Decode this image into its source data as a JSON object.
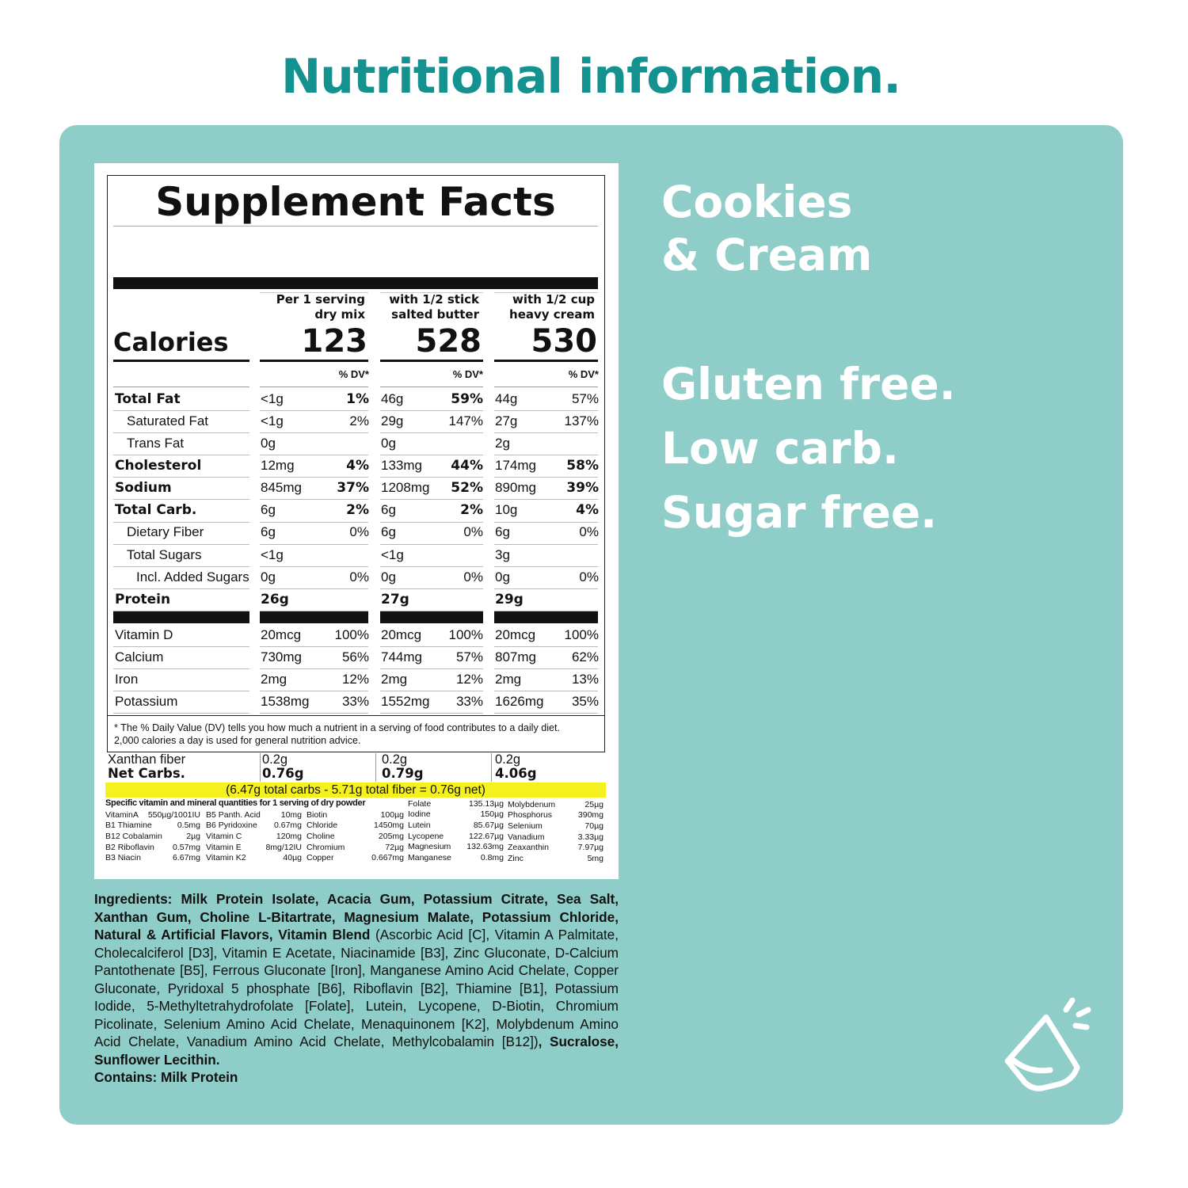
{
  "title": "Nutritional information.",
  "flavor": [
    "Cookies",
    "& Cream"
  ],
  "claims": [
    "Gluten free.",
    "Low carb.",
    "Sugar free."
  ],
  "facts": {
    "heading": "Supplement Facts",
    "calories_label": "Calories",
    "columns": [
      {
        "header": [
          "Per 1 serving",
          "dry mix"
        ],
        "calories": "123",
        "dv": "% DV*"
      },
      {
        "header": [
          "with 1/2 stick",
          "salted butter"
        ],
        "calories": "528",
        "dv": "% DV*"
      },
      {
        "header": [
          "with 1/2 cup",
          "heavy cream"
        ],
        "calories": "530",
        "dv": "% DV*"
      }
    ],
    "rows": [
      {
        "label": "Total Fat",
        "level": 0,
        "bold": true,
        "values": [
          [
            "<1g",
            "1%"
          ],
          [
            "46g",
            "59%"
          ],
          [
            "44g",
            "57%"
          ]
        ],
        "dv_bold": [
          true,
          true,
          false
        ]
      },
      {
        "label": "Saturated Fat",
        "level": 1,
        "bold": false,
        "values": [
          [
            "<1g",
            "2%"
          ],
          [
            "29g",
            "147%"
          ],
          [
            "27g",
            "137%"
          ]
        ],
        "dv_bold": [
          false,
          false,
          false
        ]
      },
      {
        "label": "Trans Fat",
        "level": 1,
        "bold": false,
        "values": [
          [
            "0g"
          ],
          [
            "0g"
          ],
          [
            "2g"
          ]
        ],
        "dv_bold": [
          false,
          false,
          false
        ]
      },
      {
        "label": "Cholesterol",
        "level": 0,
        "bold": true,
        "values": [
          [
            "12mg",
            "4%"
          ],
          [
            "133mg",
            "44%"
          ],
          [
            "174mg",
            "58%"
          ]
        ],
        "dv_bold": [
          true,
          true,
          true
        ]
      },
      {
        "label": "Sodium",
        "level": 0,
        "bold": true,
        "values": [
          [
            "845mg",
            "37%"
          ],
          [
            "1208mg",
            "52%"
          ],
          [
            "890mg",
            "39%"
          ]
        ],
        "dv_bold": [
          true,
          true,
          true
        ]
      },
      {
        "label": "Total Carb.",
        "level": 0,
        "bold": true,
        "values": [
          [
            "6g",
            "2%"
          ],
          [
            "6g",
            "2%"
          ],
          [
            "10g",
            "4%"
          ]
        ],
        "dv_bold": [
          true,
          true,
          true
        ]
      },
      {
        "label": "Dietary Fiber",
        "level": 1,
        "bold": false,
        "values": [
          [
            "6g",
            "0%"
          ],
          [
            "6g",
            "0%"
          ],
          [
            "6g",
            "0%"
          ]
        ],
        "dv_bold": [
          false,
          false,
          false
        ]
      },
      {
        "label": "Total Sugars",
        "level": 1,
        "bold": false,
        "values": [
          [
            "<1g"
          ],
          [
            "<1g"
          ],
          [
            "3g"
          ]
        ],
        "dv_bold": [
          false,
          false,
          false
        ]
      },
      {
        "label": "Incl. Added Sugars",
        "level": 2,
        "bold": false,
        "values": [
          [
            "0g",
            "0%"
          ],
          [
            "0g",
            "0%"
          ],
          [
            "0g",
            "0%"
          ]
        ],
        "dv_bold": [
          false,
          false,
          false
        ]
      },
      {
        "label": "Protein",
        "level": 0,
        "bold": true,
        "amount_bold": true,
        "values": [
          [
            "26g"
          ],
          [
            "27g"
          ],
          [
            "29g"
          ]
        ],
        "dv_bold": [
          false,
          false,
          false
        ]
      }
    ],
    "vitamins": [
      {
        "label": "Vitamin D",
        "values": [
          [
            "20mcg",
            "100%"
          ],
          [
            "20mcg",
            "100%"
          ],
          [
            "20mcg",
            "100%"
          ]
        ]
      },
      {
        "label": "Calcium",
        "values": [
          [
            "730mg",
            "56%"
          ],
          [
            "744mg",
            "57%"
          ],
          [
            "807mg",
            "62%"
          ]
        ]
      },
      {
        "label": "Iron",
        "values": [
          [
            "2mg",
            "12%"
          ],
          [
            "2mg",
            "12%"
          ],
          [
            "2mg",
            "13%"
          ]
        ]
      },
      {
        "label": "Potassium",
        "values": [
          [
            "1538mg",
            "33%"
          ],
          [
            "1552mg",
            "33%"
          ],
          [
            "1626mg",
            "35%"
          ]
        ]
      }
    ],
    "footnote": [
      "* The % Daily Value (DV) tells you how much a nutrient in a serving of food contributes to a daily diet.",
      "2,000 calories a day is used for general nutrition advice."
    ]
  },
  "extra": [
    {
      "label": "Xanthan fiber",
      "bold": false,
      "values": [
        "0.2g",
        "0.2g",
        "0.2g"
      ]
    },
    {
      "label": "Net Carbs.",
      "bold": true,
      "values": [
        "0.76g",
        "0.79g",
        "4.06g"
      ]
    }
  ],
  "net_note": "(6.47g total carbs - 5.71g total fiber = 0.76g net)",
  "micro": {
    "heading": "Specific vitamin and mineral quantities for 1 serving of dry powder",
    "columns": [
      [
        [
          "VitaminA",
          "550µg/1001IU"
        ],
        [
          "B1 Thiamine",
          "0.5mg"
        ],
        [
          "B12 Cobalamin",
          "2µg"
        ],
        [
          "B2 Riboflavin",
          "0.57mg"
        ],
        [
          "B3 Niacin",
          "6.67mg"
        ]
      ],
      [
        [
          "B5 Panth. Acid",
          "10mg"
        ],
        [
          "B6 Pyridoxine",
          "0.67mg"
        ],
        [
          "Vitamin C",
          "120mg"
        ],
        [
          "Vitamin E",
          "8mg/12IU"
        ],
        [
          "Vitamin K2",
          "40µg"
        ]
      ],
      [
        [
          "Biotin",
          "100µg"
        ],
        [
          "Chloride",
          "1450mg"
        ],
        [
          "Choline",
          "205mg"
        ],
        [
          "Chromium",
          "72µg"
        ],
        [
          "Copper",
          "0.667mg"
        ]
      ],
      [
        [
          "Folate",
          "135.13µg"
        ],
        [
          "Iodine",
          "150µg"
        ],
        [
          "Lutein",
          "85.67µg"
        ],
        [
          "Lycopene",
          "122.67µg"
        ],
        [
          "Magnesium",
          "132.63mg"
        ],
        [
          "Manganese",
          "0.8mg"
        ]
      ],
      [
        [
          "Molybdenum",
          "25µg"
        ],
        [
          "Phosphorus",
          "390mg"
        ],
        [
          "Selenium",
          "70µg"
        ],
        [
          "Vanadium",
          "3.33µg"
        ],
        [
          "Zeaxanthin",
          "7.97µg"
        ],
        [
          "Zinc",
          "5mg"
        ]
      ]
    ]
  },
  "ingredients": {
    "segments": [
      "Ingredients: Milk Protein Isolate, Acacia Gum, Potassium Citrate, Sea Salt, Xanthan Gum, Choline L-Bitartrate, Magnesium Malate, Potassium Chloride, Natural & Artificial Flavors, Vitamin Blend",
      " (Ascorbic Acid [C], Vitamin A Palmitate, Cholecalciferol [D3], Vitamin E Acetate, Niacinamide [B3], Zinc Gluconate, D-Calcium Pantothenate [B5], Ferrous Gluconate [Iron], Manganese Amino Acid Chelate, Copper Gluconate, Pyridoxal 5 phosphate [B6], Riboflavin [B2], Thiamine [B1], Potassium Iodide, 5-Methyltetrahydrofolate [Folate], Lutein, Lycopene, D-Biotin, Chromium Picolinate, Selenium Amino Acid Chelate, Menaquinonem [K2], Molybdenum Amino Acid Chelate, Vanadium Amino Acid Chelate, Methylcobalamin [B12])",
      ", Sucralose, Sunflower Lecithin."
    ],
    "contains": "Contains: Milk Protein"
  }
}
